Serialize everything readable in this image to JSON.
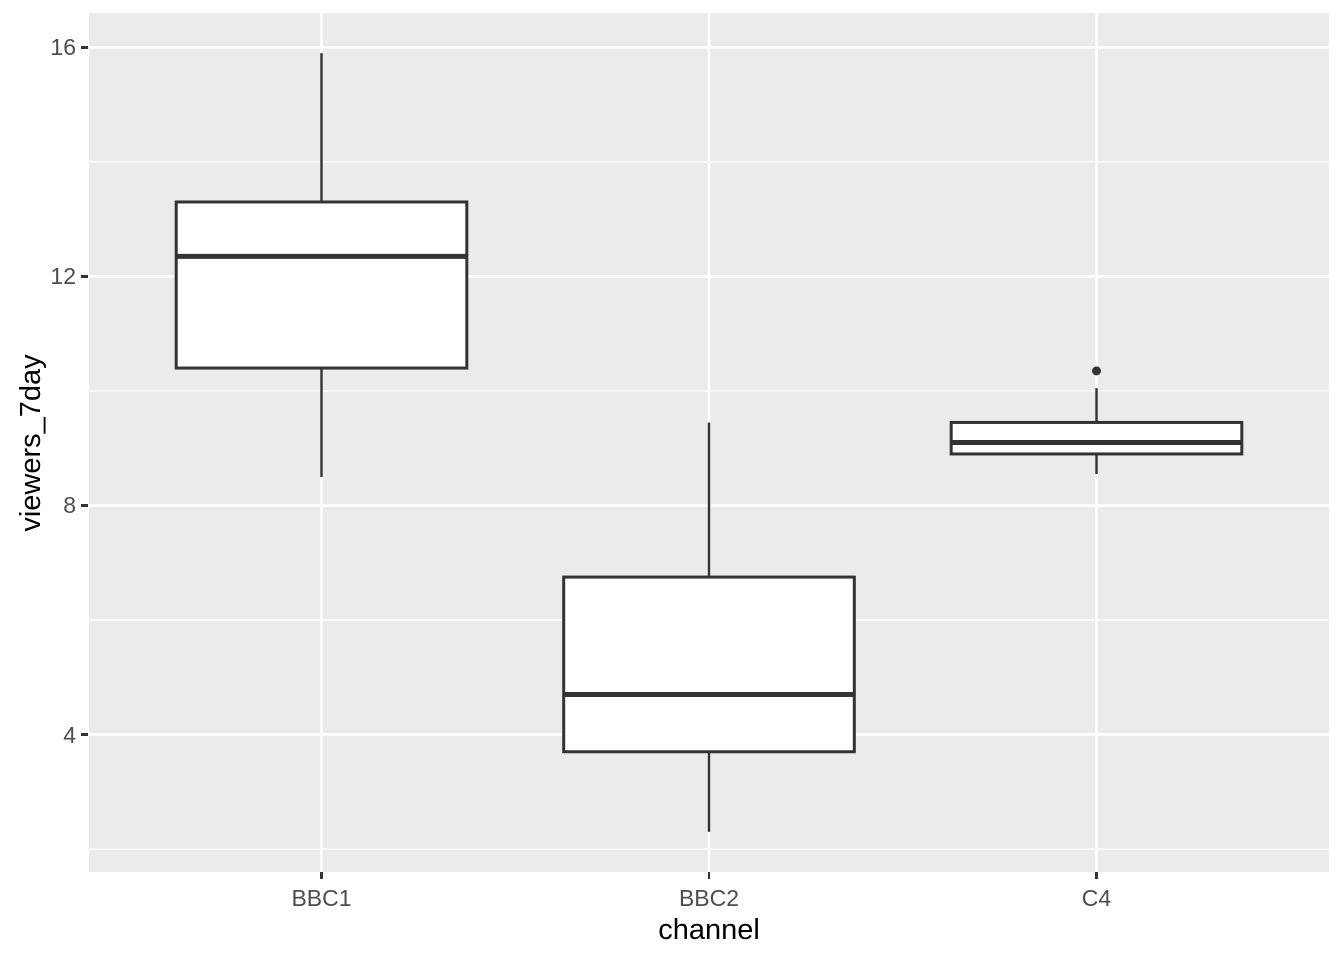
{
  "chart_data": {
    "type": "boxplot",
    "title": "",
    "xlabel": "channel",
    "ylabel": "viewers_7day",
    "categories": [
      "BBC1",
      "BBC2",
      "C4"
    ],
    "y_axis": {
      "ticks": [
        4,
        8,
        12,
        16
      ],
      "minor_ticks": [
        2,
        6,
        10,
        14
      ],
      "ylim": [
        1.6,
        16.6
      ]
    },
    "grid": "major-and-minor, white on grey panel",
    "legend": false,
    "boxes": [
      {
        "category": "BBC1",
        "whisker_low": 8.5,
        "q1": 10.4,
        "median": 12.35,
        "q3": 13.3,
        "whisker_high": 15.9,
        "outliers": []
      },
      {
        "category": "BBC2",
        "whisker_low": 2.3,
        "q1": 3.7,
        "median": 4.7,
        "q3": 6.75,
        "whisker_high": 9.45,
        "outliers": []
      },
      {
        "category": "C4",
        "whisker_low": 8.55,
        "q1": 8.9,
        "median": 9.1,
        "q3": 9.45,
        "whisker_high": 10.05,
        "outliers": [
          10.35
        ]
      }
    ],
    "style": {
      "panel_bg": "#EBEBEB",
      "grid_color": "#FFFFFF",
      "box_border": "#333333",
      "box_fill": "#FFFFFF",
      "median_color": "#333333",
      "outlier_color": "#333333",
      "axis_text_color": "#4D4D4D",
      "axis_title_color": "#000000",
      "tick_color": "#333333"
    }
  }
}
